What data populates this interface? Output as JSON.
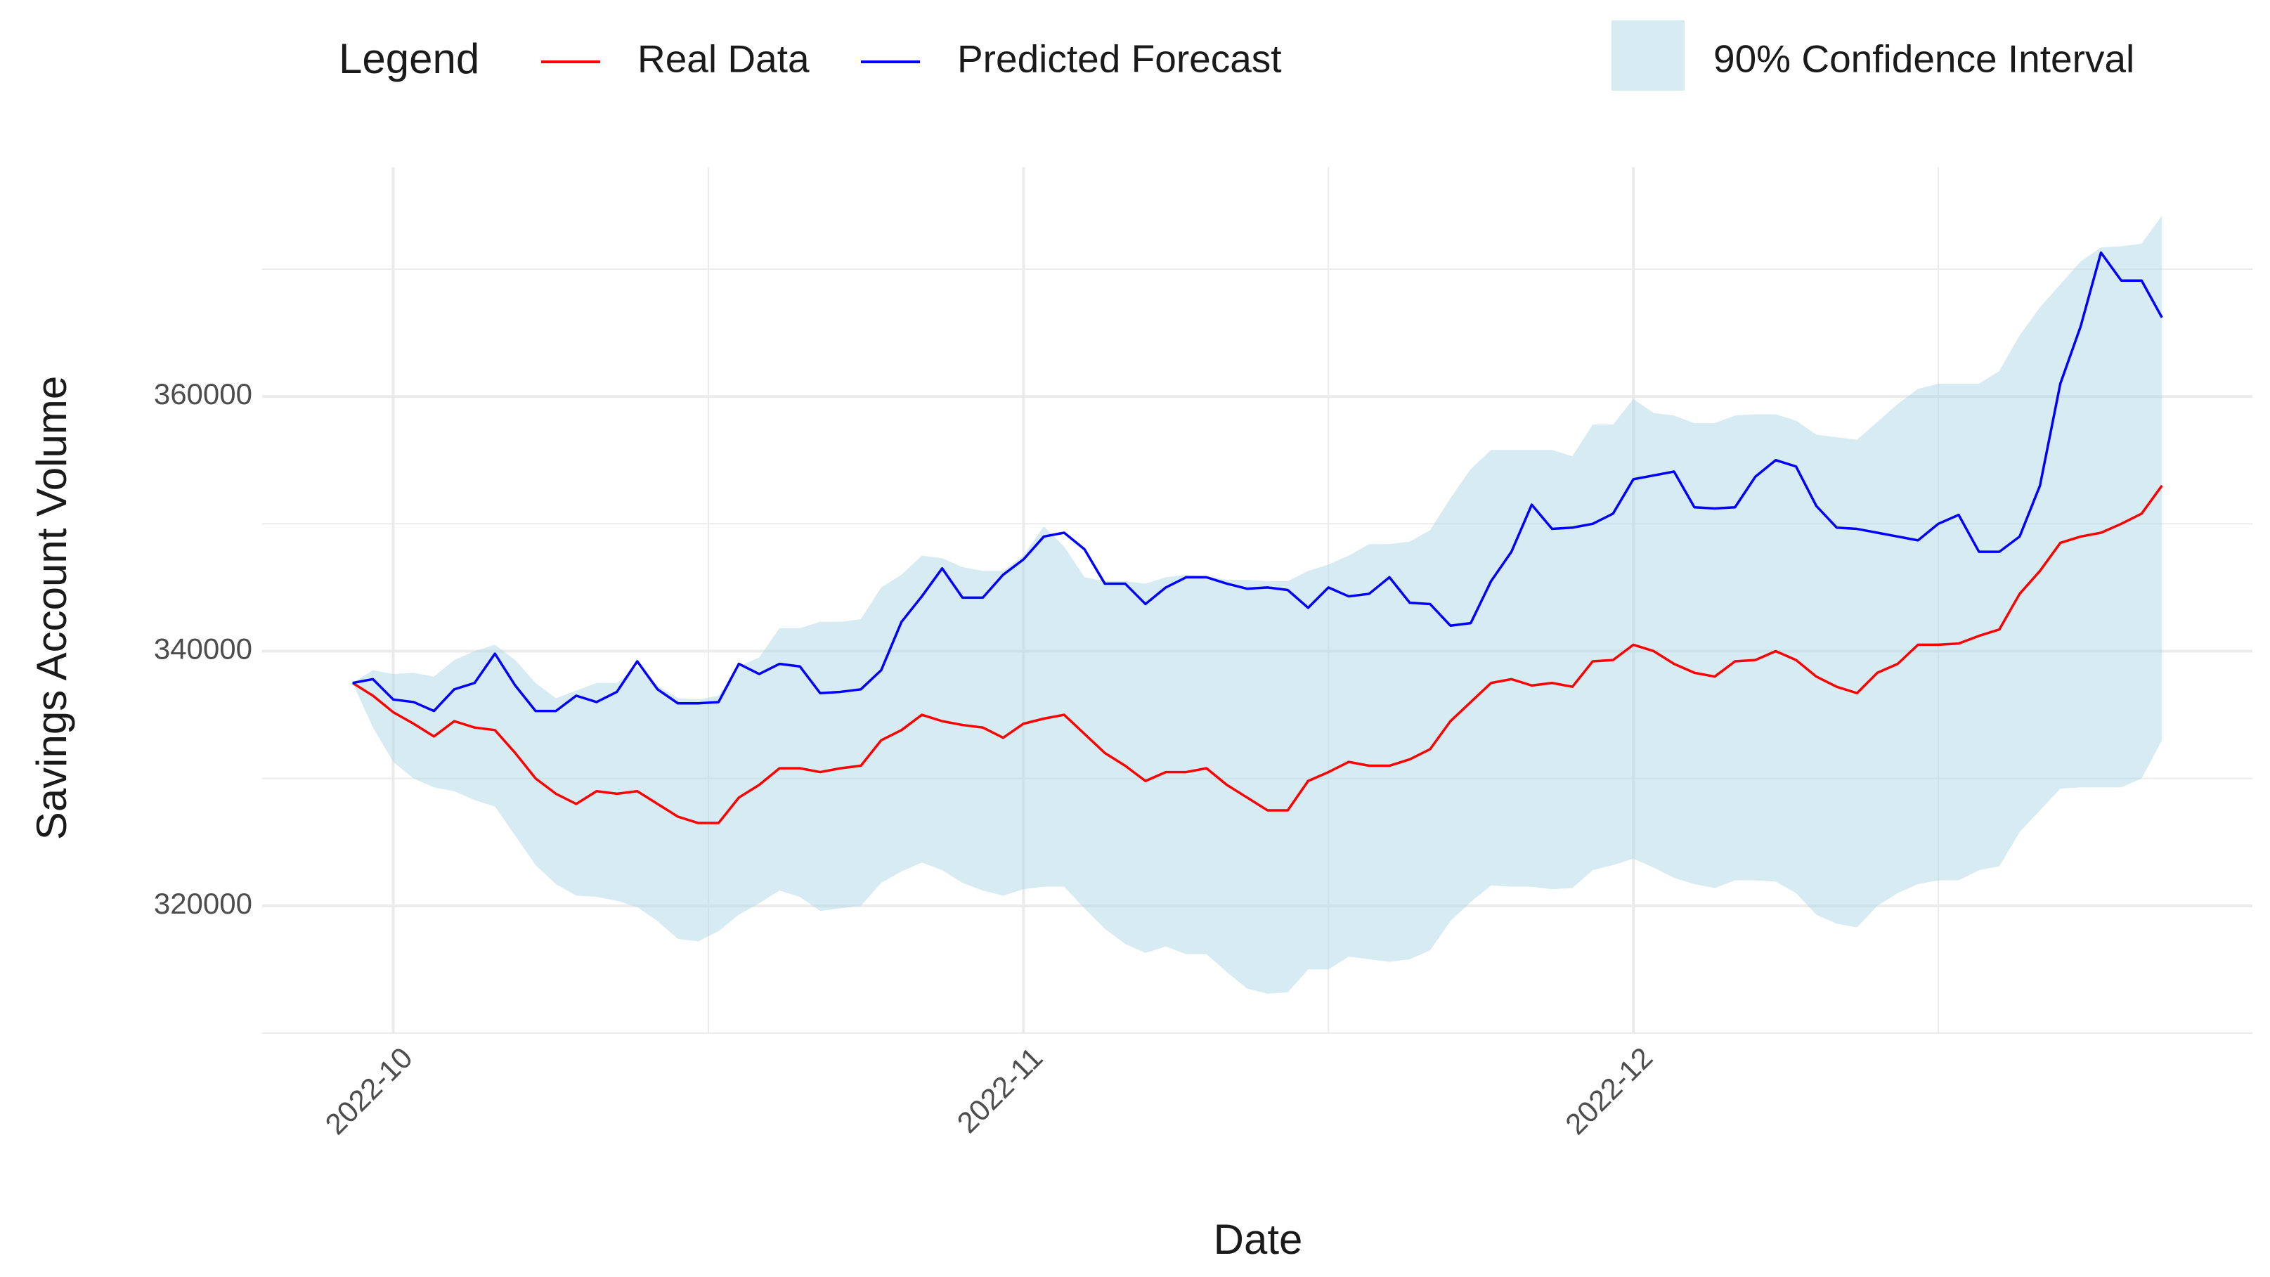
{
  "chart_data": {
    "type": "line",
    "legend_title": "Legend",
    "xlabel": "Date",
    "ylabel": "Savings Account Volume",
    "categories": [
      null,
      null,
      "2022-10",
      null,
      null,
      null,
      null,
      null,
      null,
      null,
      null,
      null,
      null,
      null,
      null,
      null,
      null,
      null,
      null,
      null,
      null,
      null,
      null,
      null,
      null,
      null,
      null,
      null,
      null,
      null,
      null,
      null,
      null,
      "2022-11",
      null,
      null,
      null,
      null,
      null,
      null,
      null,
      null,
      null,
      null,
      null,
      null,
      null,
      null,
      null,
      null,
      null,
      null,
      null,
      null,
      null,
      null,
      null,
      null,
      null,
      null,
      null,
      null,
      null,
      "2022-12",
      null,
      null,
      null,
      null,
      null,
      null,
      null,
      null,
      null,
      null,
      null,
      null,
      null,
      null,
      null,
      null,
      null,
      null,
      null,
      null,
      null,
      null,
      null,
      null,
      null,
      null
    ],
    "series": [
      {
        "name": "Real Data",
        "color": "#ff0000",
        "values": [
          337500,
          336500,
          335200,
          334300,
          333300,
          334500,
          334000,
          333800,
          332000,
          330000,
          328800,
          328000,
          329000,
          328800,
          329000,
          328000,
          327000,
          326500,
          326500,
          328500,
          329500,
          330800,
          330800,
          330500,
          330800,
          331000,
          333000,
          333800,
          335000,
          334500,
          334200,
          334000,
          333200,
          334300,
          334700,
          335000,
          333500,
          332000,
          331000,
          329800,
          330500,
          330500,
          330800,
          329500,
          328500,
          327500,
          327500,
          329800,
          330500,
          331300,
          331000,
          331000,
          331500,
          332300,
          334500,
          336000,
          337500,
          337800,
          337300,
          337500,
          337200,
          339200,
          339300,
          340500,
          340000,
          339000,
          338300,
          338000,
          339200,
          339300,
          340000,
          339300,
          338000,
          337200,
          336700,
          338300,
          339000,
          340500,
          340500,
          340600,
          341200,
          341700,
          344500,
          346300,
          348500,
          349000,
          349300,
          350000,
          350800,
          353000
        ]
      },
      {
        "name": "Predicted Forecast",
        "color": "#0000ff",
        "values": [
          337500,
          337800,
          336200,
          336000,
          335300,
          337000,
          337500,
          339800,
          337300,
          335300,
          335300,
          336500,
          336000,
          336800,
          339200,
          337000,
          335900,
          335900,
          336000,
          339000,
          338200,
          339000,
          338800,
          336700,
          336800,
          337000,
          338500,
          342300,
          344300,
          346500,
          344200,
          344200,
          346000,
          347200,
          349000,
          349300,
          348000,
          345300,
          345300,
          343700,
          345000,
          345800,
          345800,
          345300,
          344900,
          345000,
          344800,
          343400,
          345000,
          344300,
          344500,
          345800,
          343800,
          343700,
          342000,
          342200,
          345500,
          347800,
          351500,
          349600,
          349700,
          350000,
          350800,
          353500,
          353800,
          354100,
          351300,
          351200,
          351300,
          353700,
          355000,
          354500,
          351400,
          349700,
          349600,
          349300,
          349000,
          348700,
          350000,
          350700,
          347800,
          347800,
          349000,
          353000,
          361000,
          365500,
          371300,
          369100,
          369100,
          366200
        ]
      }
    ],
    "band": {
      "name": "90% Confidence Interval",
      "color": "#add8e6",
      "upper": [
        337500,
        338500,
        338200,
        338300,
        338000,
        339300,
        340000,
        340500,
        339300,
        337500,
        336300,
        336900,
        337500,
        337500,
        338800,
        337300,
        336300,
        336200,
        336500,
        338800,
        339500,
        341800,
        341800,
        342300,
        342300,
        342500,
        345000,
        346000,
        347500,
        347300,
        346600,
        346300,
        346300,
        347500,
        349800,
        348200,
        345800,
        345500,
        345500,
        345300,
        345800,
        346000,
        345900,
        345600,
        345600,
        345500,
        345500,
        346300,
        346800,
        347500,
        348400,
        348400,
        348600,
        349500,
        352000,
        354300,
        355800,
        355800,
        355800,
        355800,
        355300,
        357800,
        357800,
        359800,
        358700,
        358500,
        357900,
        357900,
        358500,
        358600,
        358600,
        358100,
        357000,
        356800,
        356600,
        358000,
        359400,
        360600,
        361000,
        361000,
        361000,
        362000,
        364800,
        367000,
        368800,
        370600,
        371700,
        371800,
        372000,
        374200
      ],
      "lower": [
        337500,
        334000,
        331300,
        330000,
        329300,
        329000,
        328300,
        327800,
        325500,
        323200,
        321700,
        320800,
        320700,
        320400,
        319900,
        318800,
        317400,
        317200,
        318000,
        319300,
        320200,
        321200,
        320700,
        319600,
        319800,
        320000,
        321800,
        322700,
        323400,
        322800,
        321800,
        321200,
        320800,
        321300,
        321500,
        321500,
        319800,
        318200,
        317000,
        316300,
        316800,
        316200,
        316200,
        314800,
        313500,
        313100,
        313200,
        315000,
        315000,
        316000,
        315800,
        315600,
        315800,
        316500,
        318800,
        320300,
        321600,
        321500,
        321500,
        321300,
        321400,
        322800,
        323200,
        323700,
        323000,
        322200,
        321700,
        321400,
        322000,
        322000,
        321900,
        321000,
        319300,
        318600,
        318300,
        320000,
        321000,
        321700,
        322000,
        322000,
        322800,
        323100,
        325800,
        327500,
        329200,
        329300,
        329300,
        329300,
        330000,
        333000
      ]
    },
    "ylim": [
      310000,
      378000
    ],
    "yticks": [
      320000,
      340000,
      360000
    ],
    "grid": true,
    "legend_position": "top"
  }
}
